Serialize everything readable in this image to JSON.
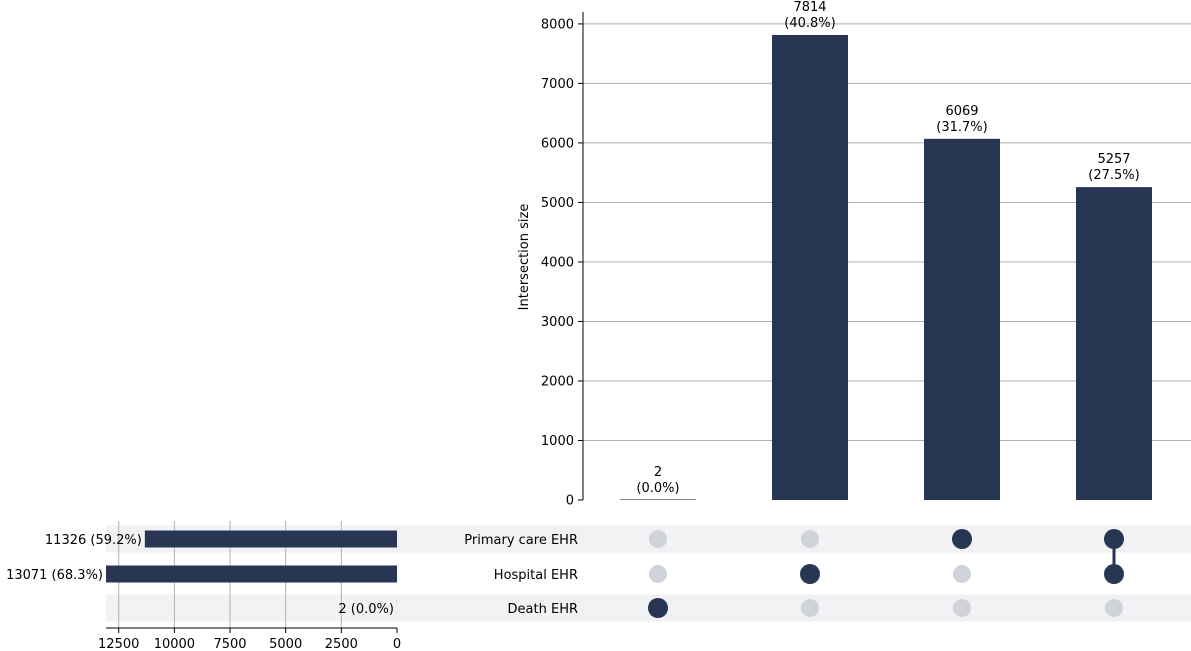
{
  "chart_data": {
    "type": "upset",
    "colors": {
      "bar": "#273653",
      "dot_active": "#273653",
      "dot_inactive": "#d0d3da",
      "stripe": "#f2f2f4",
      "grid": "#b0b0b0"
    },
    "intersections": {
      "ylabel": "Intersection size",
      "ylim": [
        0,
        8200
      ],
      "yticks": [
        0,
        1000,
        2000,
        3000,
        4000,
        5000,
        6000,
        7000,
        8000
      ],
      "ytick_labels": [
        "0",
        "1000",
        "2000",
        "3000",
        "4000",
        "5000",
        "6000",
        "7000",
        "8000"
      ],
      "values": [
        2,
        7814,
        6069,
        5257
      ],
      "labels": [
        {
          "count": "2",
          "pct": "(0.0%)"
        },
        {
          "count": "7814",
          "pct": "(40.8%)"
        },
        {
          "count": "6069",
          "pct": "(31.7%)"
        },
        {
          "count": "5257",
          "pct": "(27.5%)"
        }
      ],
      "membership": [
        [
          "Death EHR"
        ],
        [
          "Hospital EHR"
        ],
        [
          "Primary care EHR"
        ],
        [
          "Primary care EHR",
          "Hospital EHR"
        ]
      ]
    },
    "sets": {
      "names": [
        "Primary care EHR",
        "Hospital EHR",
        "Death EHR"
      ],
      "values": [
        11326,
        13071,
        2
      ],
      "labels": [
        "11326 (59.2%)",
        "13071 (68.3%)",
        "2 (0.0%)"
      ],
      "xlim": [
        13071,
        0
      ],
      "xticks": [
        12500,
        10000,
        7500,
        5000,
        2500,
        0
      ],
      "xtick_labels": [
        "12500",
        "10000",
        "7500",
        "5000",
        "2500",
        "0"
      ]
    }
  }
}
